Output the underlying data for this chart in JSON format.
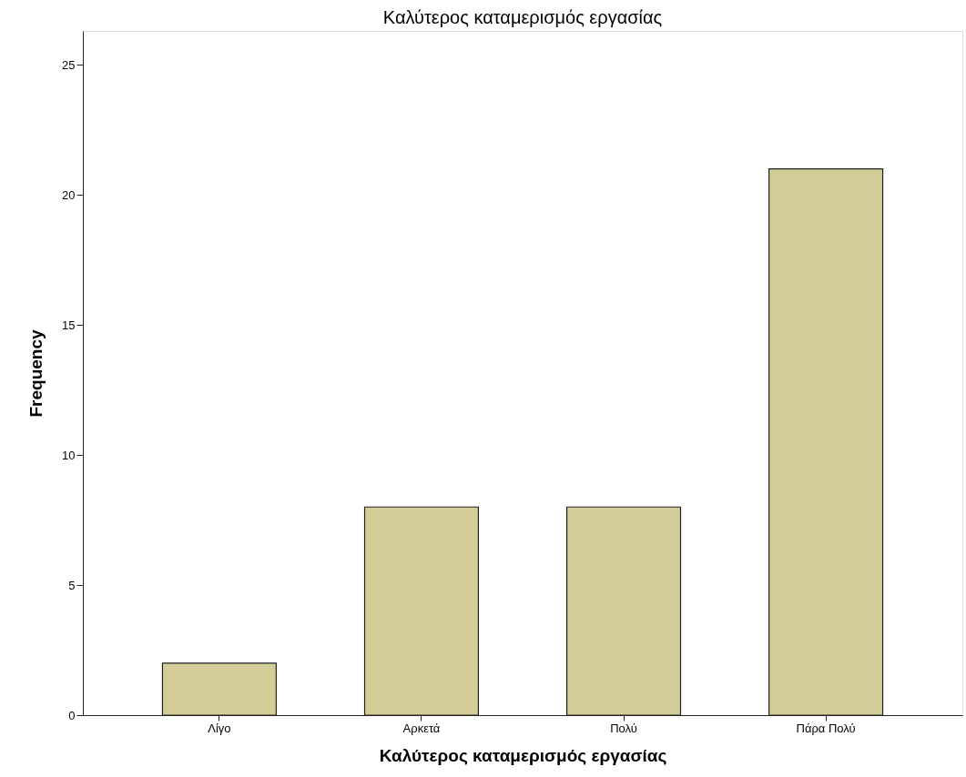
{
  "chart_data": {
    "type": "bar",
    "title": "Καλύτερος καταμερισμός εργασίας",
    "xlabel": "Καλύτερος καταμερισμός εργασίας",
    "ylabel": "Frequency",
    "categories": [
      "Λίγο",
      "Αρκετά",
      "Πολύ",
      "Πάρα Πολύ"
    ],
    "values": [
      2,
      8,
      8,
      21
    ],
    "color": "#d3ce98",
    "ylim": [
      0,
      26.3
    ],
    "yticks": [
      0,
      5,
      10,
      15,
      20,
      25
    ],
    "grid": false
  }
}
